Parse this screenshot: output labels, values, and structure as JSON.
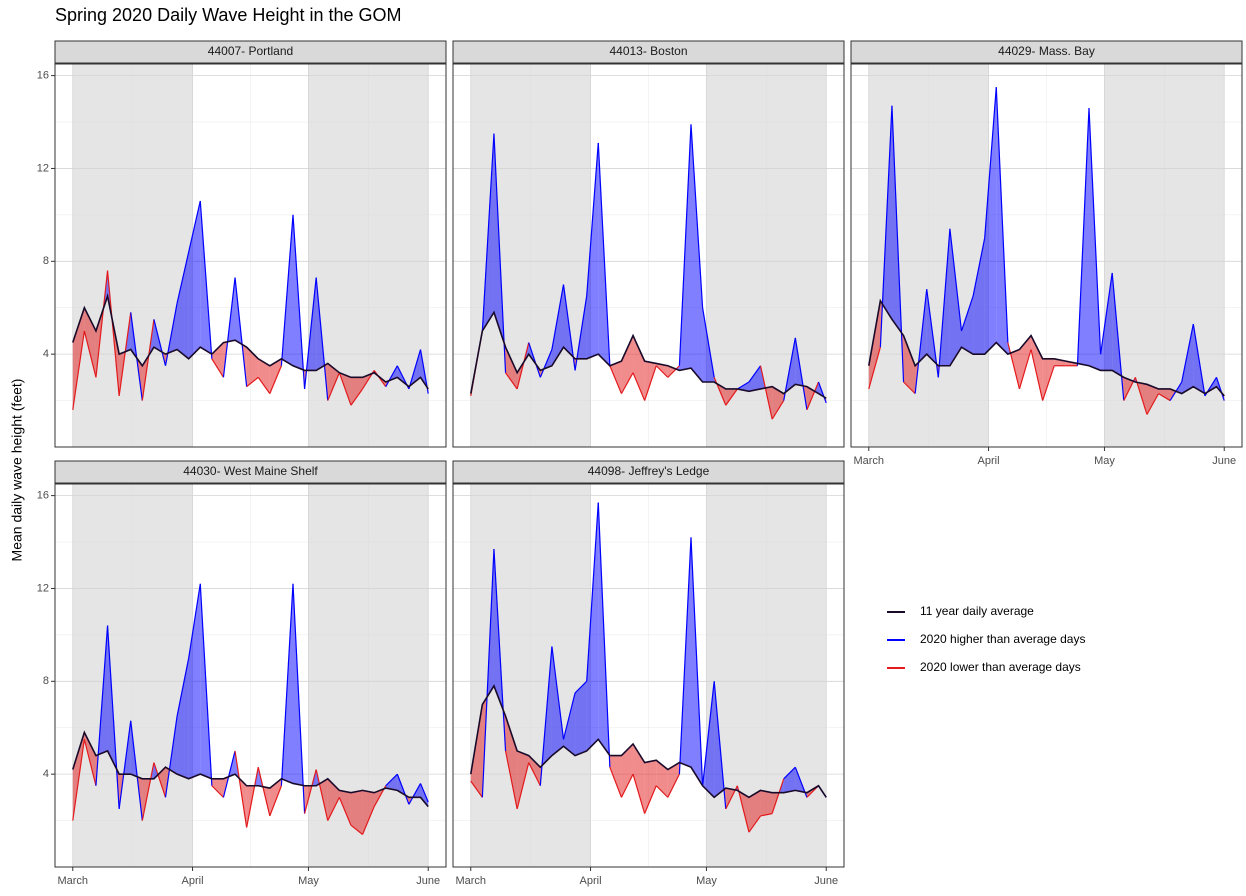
{
  "title": "Spring 2020 Daily Wave Height in the GOM",
  "y_label": "Mean daily wave height (feet)",
  "legend": [
    {
      "name": "11 year daily average",
      "color": "#1a0a2a"
    },
    {
      "name": "2020 higher than average days",
      "color": "#0000ff"
    },
    {
      "name": "2020 lower than average days",
      "color": "#e31a1c"
    }
  ],
  "chart_data": [
    {
      "type": "area-difference",
      "title": "44007- Portland",
      "x": [
        0,
        3,
        6,
        9,
        12,
        15,
        18,
        21,
        24,
        27,
        30,
        33,
        36,
        39,
        42,
        45,
        48,
        51,
        54,
        57,
        60,
        63,
        66,
        69,
        72,
        75,
        78,
        81,
        84,
        87,
        90,
        92
      ],
      "series": [
        {
          "values": [
            4.5,
            6.0,
            5.0,
            6.5,
            4.0,
            4.2,
            3.5,
            4.3,
            4.0,
            4.2,
            3.8,
            4.3,
            4.0,
            4.5,
            4.6,
            4.3,
            3.8,
            3.5,
            3.8,
            3.5,
            3.3,
            3.3,
            3.6,
            3.2,
            3.0,
            3.0,
            3.2,
            2.8,
            3.0,
            2.6,
            3.0,
            2.5
          ]
        },
        {
          "values": [
            1.6,
            5.0,
            3.0,
            7.6,
            2.2,
            5.8,
            2.0,
            5.5,
            3.5,
            6.2,
            8.4,
            10.6,
            3.8,
            3.0,
            7.3,
            2.6,
            3.0,
            2.3,
            3.5,
            10.0,
            2.5,
            7.3,
            2.0,
            3.2,
            1.8,
            2.5,
            3.3,
            2.6,
            3.5,
            2.5,
            4.2,
            2.3
          ]
        }
      ],
      "xlim": [
        -4.6,
        96.6
      ],
      "ylim": [
        0,
        16.5
      ],
      "xticks": [
        {
          "value": 0,
          "label": "March"
        },
        {
          "value": 31,
          "label": "April"
        },
        {
          "value": 61,
          "label": "May"
        },
        {
          "value": 92,
          "label": "June"
        }
      ],
      "yticks": [
        4,
        8,
        12,
        16
      ],
      "grid": true
    },
    {
      "type": "area-difference",
      "title": "44013- Boston",
      "x": [
        0,
        3,
        6,
        9,
        12,
        15,
        18,
        21,
        24,
        27,
        30,
        33,
        36,
        39,
        42,
        45,
        48,
        51,
        54,
        57,
        60,
        63,
        66,
        69,
        72,
        75,
        78,
        81,
        84,
        87,
        90,
        92
      ],
      "series": [
        {
          "values": [
            2.3,
            5.0,
            5.8,
            4.3,
            3.2,
            4.0,
            3.3,
            3.5,
            4.3,
            3.8,
            3.8,
            4.0,
            3.5,
            3.7,
            4.8,
            3.7,
            3.6,
            3.5,
            3.3,
            3.4,
            2.8,
            2.8,
            2.5,
            2.5,
            2.4,
            2.5,
            2.6,
            2.3,
            2.7,
            2.6,
            2.3,
            2.1
          ]
        },
        {
          "values": [
            2.2,
            5.0,
            13.5,
            3.2,
            2.5,
            4.5,
            3.0,
            4.2,
            7.0,
            3.3,
            6.5,
            13.1,
            3.5,
            2.3,
            3.2,
            2.0,
            3.5,
            3.0,
            3.5,
            13.9,
            6.0,
            3.0,
            1.8,
            2.5,
            2.8,
            3.5,
            1.2,
            2.0,
            4.7,
            1.6,
            2.8,
            1.9
          ]
        }
      ],
      "xlim": [
        -4.6,
        96.6
      ],
      "ylim": [
        0,
        16.5
      ],
      "xticks": [
        {
          "value": 0,
          "label": "March"
        },
        {
          "value": 31,
          "label": "April"
        },
        {
          "value": 61,
          "label": "May"
        },
        {
          "value": 92,
          "label": "June"
        }
      ],
      "yticks": [
        4,
        8,
        12,
        16
      ],
      "grid": true
    },
    {
      "type": "area-difference",
      "title": "44029- Mass. Bay",
      "x": [
        0,
        3,
        6,
        9,
        12,
        15,
        18,
        21,
        24,
        27,
        30,
        33,
        36,
        39,
        42,
        45,
        48,
        51,
        54,
        57,
        60,
        63,
        66,
        69,
        72,
        75,
        78,
        81,
        84,
        87,
        90,
        92
      ],
      "series": [
        {
          "values": [
            3.5,
            6.3,
            5.5,
            4.8,
            3.5,
            4.0,
            3.5,
            3.5,
            4.3,
            4.0,
            4.0,
            4.5,
            4.0,
            4.2,
            4.8,
            3.8,
            3.8,
            3.7,
            3.6,
            3.5,
            3.3,
            3.3,
            3.0,
            2.8,
            2.7,
            2.5,
            2.5,
            2.3,
            2.6,
            2.3,
            2.6,
            2.2
          ]
        },
        {
          "values": [
            2.5,
            4.3,
            14.7,
            2.8,
            2.3,
            6.8,
            3.0,
            9.4,
            5.0,
            6.5,
            9.0,
            15.5,
            4.5,
            2.5,
            4.2,
            2.0,
            3.5,
            3.5,
            3.5,
            14.6,
            4.0,
            7.5,
            2.0,
            3.0,
            1.4,
            2.3,
            2.0,
            2.8,
            5.3,
            2.2,
            3.0,
            2.0
          ]
        }
      ],
      "xlim": [
        -4.6,
        96.6
      ],
      "ylim": [
        0,
        16.5
      ],
      "xticks": [
        {
          "value": 0,
          "label": "March"
        },
        {
          "value": 31,
          "label": "April"
        },
        {
          "value": 61,
          "label": "May"
        },
        {
          "value": 92,
          "label": "June"
        }
      ],
      "yticks": [
        4,
        8,
        12,
        16
      ],
      "grid": true
    },
    {
      "type": "area-difference",
      "title": "44030- West Maine Shelf",
      "x": [
        0,
        3,
        6,
        9,
        12,
        15,
        18,
        21,
        24,
        27,
        30,
        33,
        36,
        39,
        42,
        45,
        48,
        51,
        54,
        57,
        60,
        63,
        66,
        69,
        72,
        75,
        78,
        81,
        84,
        87,
        90,
        92
      ],
      "series": [
        {
          "values": [
            4.2,
            5.8,
            4.8,
            5.0,
            4.0,
            4.0,
            3.8,
            3.8,
            4.3,
            4.0,
            3.8,
            4.0,
            3.8,
            3.8,
            4.0,
            3.5,
            3.5,
            3.4,
            3.8,
            3.6,
            3.5,
            3.5,
            3.8,
            3.3,
            3.2,
            3.3,
            3.2,
            3.4,
            3.3,
            3.0,
            3.0,
            2.6
          ]
        },
        {
          "values": [
            2.0,
            5.5,
            3.5,
            10.4,
            2.5,
            6.3,
            2.0,
            4.5,
            3.0,
            6.5,
            9.0,
            12.2,
            3.5,
            3.0,
            5.0,
            1.7,
            4.3,
            2.2,
            3.5,
            12.2,
            2.3,
            4.2,
            2.0,
            3.0,
            1.8,
            1.4,
            2.6,
            3.5,
            4.0,
            2.7,
            3.6,
            2.8
          ]
        }
      ],
      "xlim": [
        -4.6,
        96.6
      ],
      "ylim": [
        0,
        16.5
      ],
      "xticks": [
        {
          "value": 0,
          "label": "March"
        },
        {
          "value": 31,
          "label": "April"
        },
        {
          "value": 61,
          "label": "May"
        },
        {
          "value": 92,
          "label": "June"
        }
      ],
      "yticks": [
        4,
        8,
        12,
        16
      ],
      "grid": true
    },
    {
      "type": "area-difference",
      "title": "44098- Jeffrey's Ledge",
      "x": [
        0,
        3,
        6,
        9,
        12,
        15,
        18,
        21,
        24,
        27,
        30,
        33,
        36,
        39,
        42,
        45,
        48,
        51,
        54,
        57,
        60,
        63,
        66,
        69,
        72,
        75,
        78,
        81,
        84,
        87,
        90,
        92
      ],
      "series": [
        {
          "values": [
            4.0,
            7.0,
            7.8,
            6.5,
            5.0,
            4.8,
            4.3,
            4.8,
            5.2,
            4.8,
            5.0,
            5.5,
            4.8,
            4.8,
            5.3,
            4.5,
            4.6,
            4.2,
            4.5,
            4.3,
            3.5,
            3.0,
            3.4,
            3.3,
            3.0,
            3.3,
            3.2,
            3.2,
            3.3,
            3.2,
            3.5,
            3.0
          ]
        },
        {
          "values": [
            3.7,
            3.0,
            13.7,
            5.0,
            2.5,
            4.5,
            3.5,
            9.5,
            5.5,
            7.5,
            8.0,
            15.7,
            4.3,
            3.0,
            4.0,
            2.3,
            3.5,
            3.0,
            4.0,
            14.2,
            3.5,
            8.0,
            2.5,
            3.5,
            1.5,
            2.2,
            2.3,
            3.8,
            4.3,
            3.0,
            3.5,
            3.0
          ]
        }
      ],
      "xlim": [
        -4.6,
        96.6
      ],
      "ylim": [
        0,
        16.5
      ],
      "xticks": [
        {
          "value": 0,
          "label": "March"
        },
        {
          "value": 31,
          "label": "April"
        },
        {
          "value": 61,
          "label": "May"
        },
        {
          "value": 92,
          "label": "June"
        }
      ],
      "yticks": [
        4,
        8,
        12,
        16
      ],
      "grid": true
    }
  ]
}
